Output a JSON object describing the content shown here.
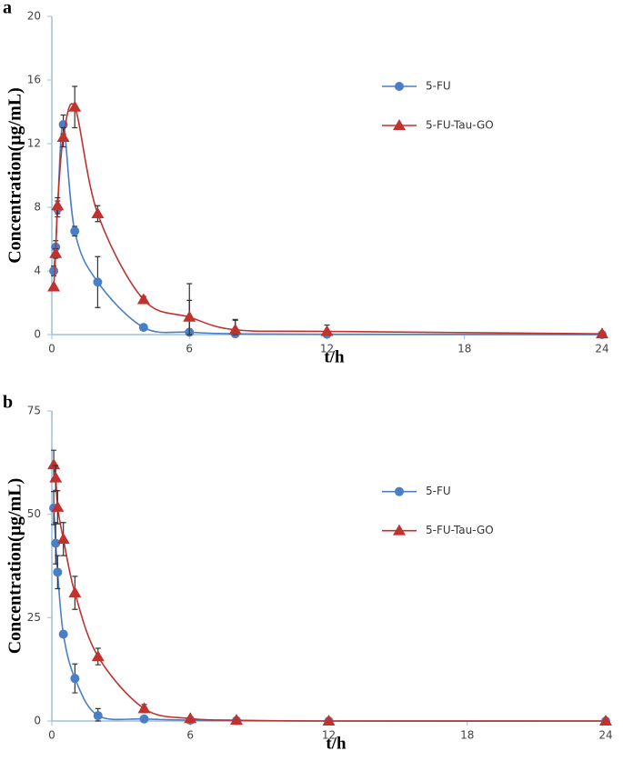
{
  "chart_data": [
    {
      "type": "line",
      "label": "a",
      "x_label": "t/h",
      "y_label": "Concentration(μg/mL)",
      "x": [
        0.083,
        0.167,
        0.25,
        0.5,
        1,
        2,
        4,
        6,
        8,
        12,
        24
      ],
      "xlim": [
        0,
        24
      ],
      "xticks": [
        0,
        6,
        12,
        18,
        24
      ],
      "ylim": [
        0,
        20
      ],
      "yticks": [
        0,
        4,
        8,
        12,
        16,
        20
      ],
      "legend": "upper right",
      "series": [
        {
          "name": "5-FU",
          "color": "#4a7fc8",
          "marker": "circle",
          "values": [
            4.0,
            5.5,
            7.9,
            13.2,
            6.5,
            3.3,
            0.45,
            0.15,
            0.05,
            0.02,
            0.0
          ],
          "errors": [
            0.3,
            0.4,
            0.5,
            0.6,
            0.3,
            1.6,
            0.1,
            2.0,
            0.9,
            null,
            null
          ]
        },
        {
          "name": "5-FU-Tau-GO",
          "color": "#c0322e",
          "marker": "triangle",
          "values": [
            3.0,
            5.1,
            8.1,
            12.4,
            14.3,
            7.6,
            2.2,
            1.1,
            0.3,
            0.2,
            0.05
          ],
          "errors": [
            null,
            0.3,
            0.5,
            0.6,
            1.3,
            0.5,
            0.2,
            2.1,
            0.6,
            0.4,
            null
          ]
        }
      ]
    },
    {
      "type": "line",
      "label": "b",
      "x_label": "t/h",
      "y_label": "Concentration(μg/mL)",
      "x": [
        0.083,
        0.167,
        0.25,
        0.5,
        1,
        2,
        4,
        6,
        8,
        12,
        24
      ],
      "xlim": [
        0,
        24
      ],
      "xticks": [
        0,
        6,
        12,
        18,
        24
      ],
      "ylim": [
        0,
        75
      ],
      "yticks": [
        0,
        25,
        50,
        75
      ],
      "legend": "center right",
      "series": [
        {
          "name": "5-FU",
          "color": "#4a7fc8",
          "marker": "circle",
          "values": [
            51.5,
            43,
            36,
            21,
            10.3,
            1.3,
            0.5,
            0.2,
            0.1,
            0,
            0
          ],
          "errors": [
            4,
            5,
            4,
            null,
            3.5,
            1.7,
            null,
            null,
            null,
            null,
            null
          ]
        },
        {
          "name": "5-FU-Tau-GO",
          "color": "#c0322e",
          "marker": "triangle",
          "values": [
            62,
            58.8,
            51.7,
            44,
            31,
            15.6,
            3,
            0.6,
            0.2,
            0,
            0
          ],
          "errors": [
            3.5,
            3,
            4,
            4,
            4,
            2,
            1,
            null,
            null,
            null,
            null
          ]
        }
      ]
    }
  ]
}
